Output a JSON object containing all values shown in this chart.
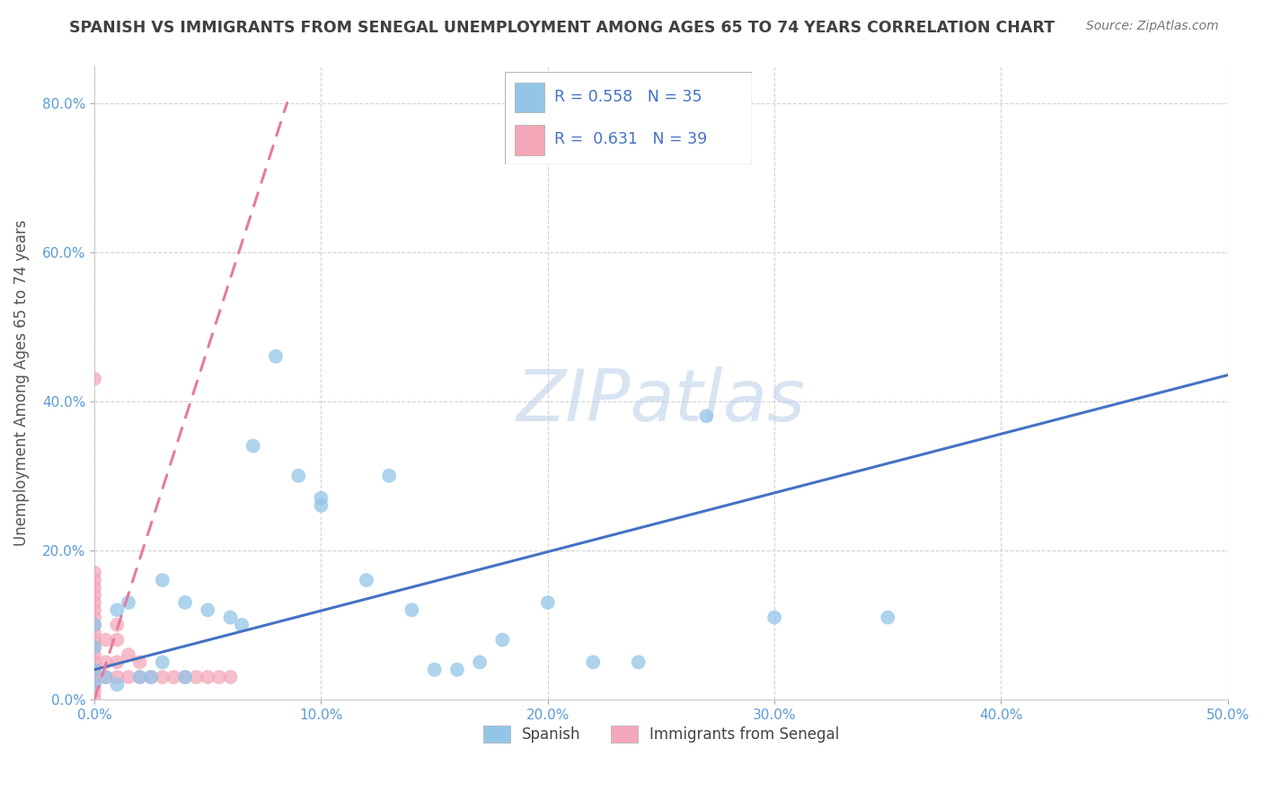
{
  "title": "SPANISH VS IMMIGRANTS FROM SENEGAL UNEMPLOYMENT AMONG AGES 65 TO 74 YEARS CORRELATION CHART",
  "source": "Source: ZipAtlas.com",
  "ylabel": "Unemployment Among Ages 65 to 74 years",
  "xlim": [
    0.0,
    0.5
  ],
  "ylim": [
    0.0,
    0.85
  ],
  "xticks": [
    0.0,
    0.1,
    0.2,
    0.3,
    0.4,
    0.5
  ],
  "yticks": [
    0.0,
    0.2,
    0.4,
    0.6,
    0.8
  ],
  "legend_R_spanish": "0.558",
  "legend_N_spanish": "35",
  "legend_R_senegal": "0.631",
  "legend_N_senegal": "39",
  "spanish_color": "#92c5e8",
  "senegal_color": "#f4a7b9",
  "spanish_line_color": "#4472c4",
  "senegal_line_color": "#e8799f",
  "watermark_color": "#b8cfe8",
  "background_color": "#ffffff",
  "grid_color": "#d0d0d0",
  "spanish_x": [
    0.0,
    0.0,
    0.0,
    0.0,
    0.005,
    0.01,
    0.01,
    0.015,
    0.02,
    0.025,
    0.03,
    0.03,
    0.04,
    0.04,
    0.05,
    0.06,
    0.065,
    0.07,
    0.08,
    0.09,
    0.1,
    0.1,
    0.12,
    0.13,
    0.14,
    0.15,
    0.16,
    0.17,
    0.18,
    0.2,
    0.22,
    0.24,
    0.27,
    0.3,
    0.35
  ],
  "spanish_y": [
    0.02,
    0.04,
    0.07,
    0.1,
    0.03,
    0.02,
    0.12,
    0.13,
    0.03,
    0.03,
    0.05,
    0.16,
    0.03,
    0.13,
    0.12,
    0.11,
    0.1,
    0.34,
    0.46,
    0.3,
    0.26,
    0.27,
    0.16,
    0.3,
    0.12,
    0.04,
    0.04,
    0.05,
    0.08,
    0.13,
    0.05,
    0.05,
    0.38,
    0.11,
    0.11
  ],
  "senegal_x": [
    0.0,
    0.0,
    0.0,
    0.0,
    0.0,
    0.0,
    0.0,
    0.0,
    0.0,
    0.0,
    0.0,
    0.0,
    0.0,
    0.0,
    0.0,
    0.0,
    0.0,
    0.0,
    0.0,
    0.0,
    0.005,
    0.005,
    0.005,
    0.01,
    0.01,
    0.01,
    0.01,
    0.015,
    0.015,
    0.02,
    0.02,
    0.025,
    0.03,
    0.035,
    0.04,
    0.045,
    0.05,
    0.055,
    0.06
  ],
  "senegal_y": [
    0.0,
    0.01,
    0.02,
    0.03,
    0.04,
    0.05,
    0.06,
    0.07,
    0.08,
    0.09,
    0.1,
    0.11,
    0.12,
    0.13,
    0.14,
    0.15,
    0.16,
    0.17,
    0.43,
    0.03,
    0.03,
    0.05,
    0.08,
    0.03,
    0.05,
    0.08,
    0.1,
    0.03,
    0.06,
    0.03,
    0.05,
    0.03,
    0.03,
    0.03,
    0.03,
    0.03,
    0.03,
    0.03,
    0.03
  ],
  "spanish_line_x": [
    0.0,
    0.5
  ],
  "spanish_line_y": [
    0.04,
    0.435
  ],
  "senegal_line_x": [
    0.0,
    0.085
  ],
  "senegal_line_y": [
    0.0,
    0.8
  ]
}
